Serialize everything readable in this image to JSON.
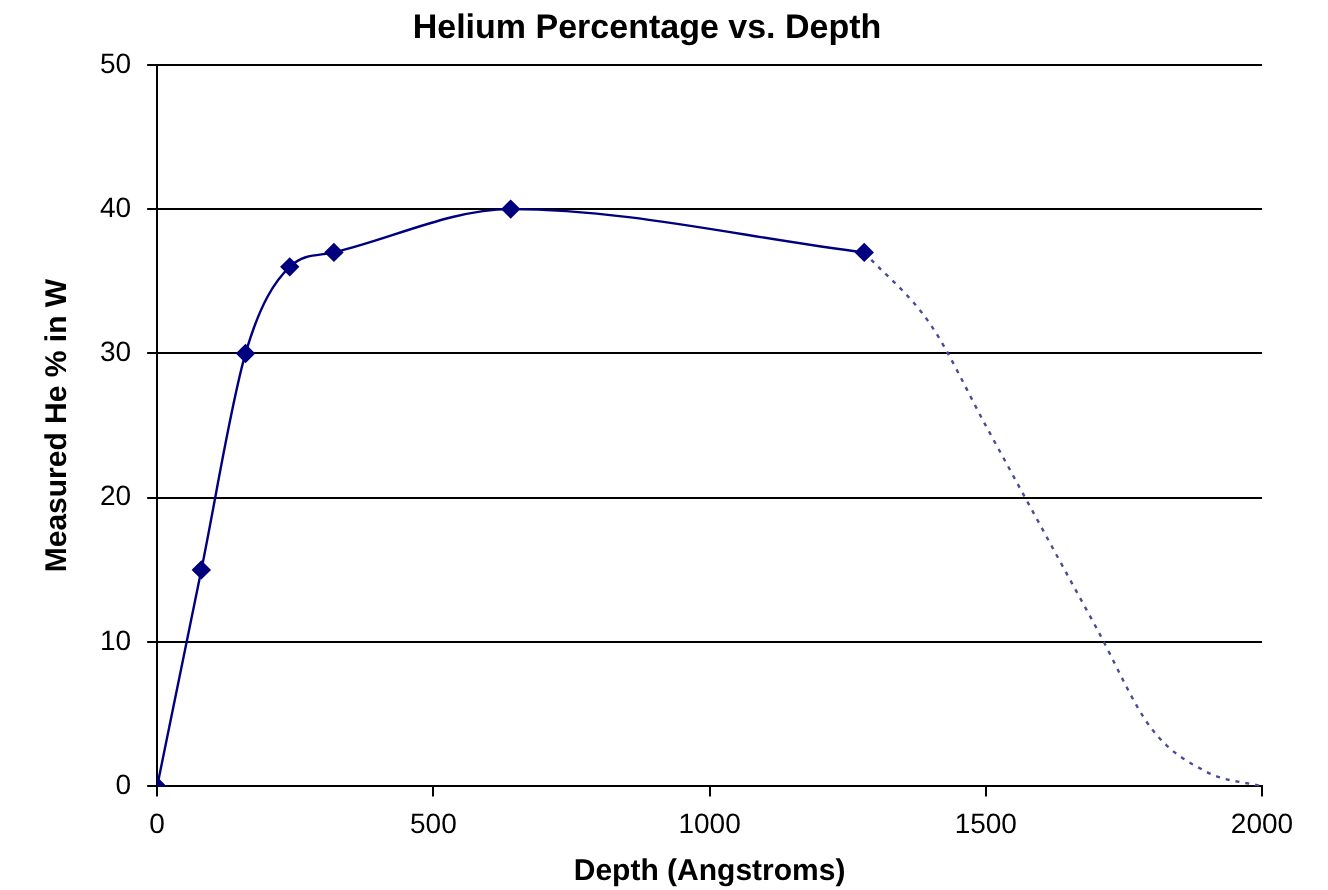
{
  "chart_data": {
    "type": "line",
    "title": "Helium Percentage vs. Depth",
    "xlabel": "Depth (Angstroms)",
    "ylabel": "Measured He % in W",
    "xlim": [
      0,
      2000
    ],
    "xticks": [
      0,
      500,
      1000,
      1500,
      2000
    ],
    "ylim": [
      0,
      50
    ],
    "yticks": [
      0,
      10,
      20,
      30,
      40,
      50
    ],
    "grid": "y",
    "legend": false,
    "series": [
      {
        "color": "#00007f",
        "x": [
          0,
          80,
          160,
          240,
          320,
          640,
          1280
        ],
        "values": [
          0,
          15,
          30,
          36,
          37,
          40,
          37
        ],
        "marker": "diamond",
        "line_style": "solid"
      },
      {
        "color": "#4a4a96",
        "x": [
          1280,
          1400,
          1500,
          1600,
          1700,
          1800,
          1900,
          2000
        ],
        "values": [
          37,
          32,
          25,
          18,
          11,
          4,
          1,
          0
        ],
        "marker": "none",
        "line_style": "dotted"
      }
    ]
  }
}
